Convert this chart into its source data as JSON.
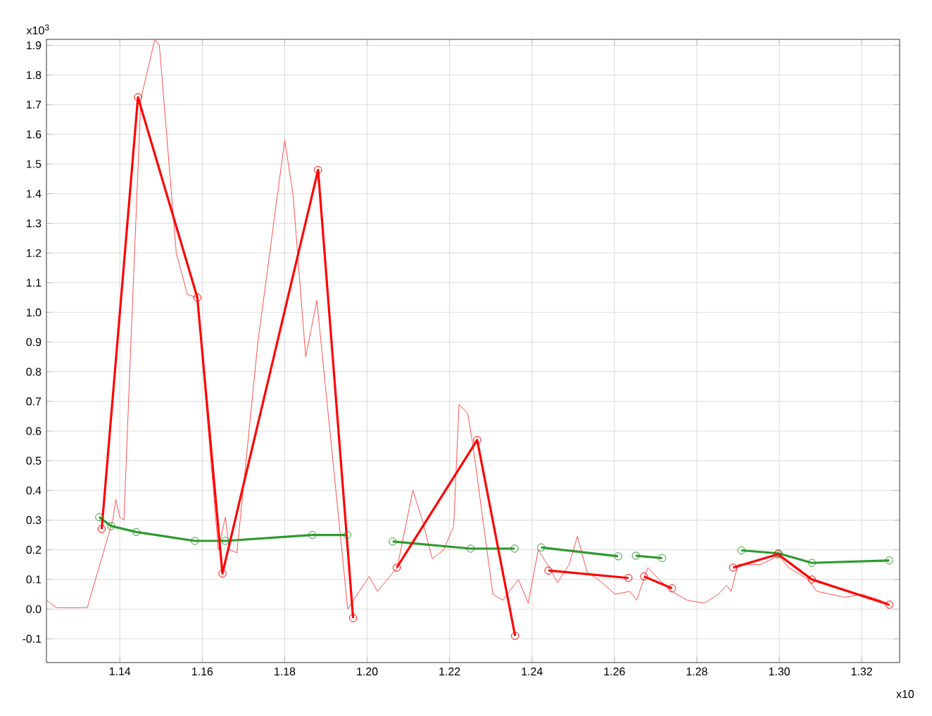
{
  "chart_data": {
    "type": "line",
    "ylabel": "x10$^{3}$",
    "xlabel": "x10",
    "xlim": [
      1.1222,
      1.3292
    ],
    "ylim": [
      -0.18,
      1.92
    ],
    "xticks": [
      1.14,
      1.16,
      1.18,
      {
        "value": 1.2,
        "label": "1.20"
      },
      1.22,
      1.24,
      1.26,
      1.28,
      {
        "value": 1.3,
        "label": "1.30"
      },
      1.32
    ],
    "yticks": [
      -0.1,
      {
        "value": 0,
        "label": "0.0"
      },
      0.1,
      0.2,
      0.3,
      0.4,
      0.5,
      0.6,
      0.7,
      0.8,
      0.9,
      {
        "value": 1,
        "label": "1.0"
      },
      1.1,
      1.2,
      1.3,
      1.4,
      1.5,
      1.6,
      1.7,
      1.8,
      1.9
    ],
    "grid": true,
    "series": [
      {
        "color": "#ff5050",
        "marker": "none",
        "x": [
          1.1222,
          1.1246,
          1.1321,
          1.1383,
          1.139,
          1.14,
          1.141,
          1.1424,
          1.1451,
          1.1485,
          1.1496,
          1.1537,
          1.1564,
          1.1588,
          1.1639,
          1.1656,
          1.1666,
          1.1684,
          1.1735,
          1.18,
          1.182,
          1.1851,
          1.1878,
          1.1953,
          1.1981,
          1.2005,
          1.2025,
          1.2049,
          1.2073,
          1.2111,
          1.2134,
          1.2158,
          1.2186,
          1.221,
          1.2223,
          1.2244,
          1.2257,
          1.2305,
          1.2329,
          1.2367,
          1.2391,
          1.2415,
          1.2442,
          1.2462,
          1.249,
          1.251,
          1.2534,
          1.2561,
          1.2602,
          1.2637,
          1.2654,
          1.2681,
          1.2708,
          1.2739,
          1.2777,
          1.2818,
          1.2852,
          1.2872,
          1.2883,
          1.29,
          1.2954,
          1.2999,
          1.3023,
          1.307,
          1.3091,
          1.3159,
          1.32,
          1.3245,
          1.3272
        ],
        "values": [
          0.03,
          0.005,
          0.005,
          0.3,
          0.37,
          0.31,
          0.3,
          0.8,
          1.72,
          1.92,
          1.9,
          1.2,
          1.06,
          1.05,
          0.2,
          0.31,
          0.2,
          0.19,
          0.9,
          1.58,
          1.4,
          0.85,
          1.04,
          0.0,
          0.06,
          0.11,
          0.06,
          0.1,
          0.14,
          0.4,
          0.3,
          0.17,
          0.2,
          0.28,
          0.69,
          0.66,
          0.55,
          0.05,
          0.03,
          0.1,
          0.02,
          0.2,
          0.14,
          0.09,
          0.15,
          0.245,
          0.124,
          0.1,
          0.05,
          0.06,
          0.03,
          0.14,
          0.1,
          0.06,
          0.03,
          0.02,
          0.05,
          0.08,
          0.06,
          0.15,
          0.15,
          0.18,
          0.14,
          0.1,
          0.06,
          0.04,
          0.05,
          0.03,
          0.01
        ]
      },
      {
        "color": "#2e9a2e",
        "marker": "circle",
        "x": [
          1.135,
          1.1379,
          1.144,
          1.1582,
          1.1656,
          1.1867,
          1.1952,
          1.2,
          1.2062,
          1.2251,
          1.2358,
          1.239,
          1.2422,
          1.2609,
          1.263,
          1.2652,
          1.2716,
          1.28,
          1.2908,
          1.2998,
          1.3079,
          1.3267
        ],
        "values": [
          0.31,
          0.28,
          0.26,
          0.23,
          0.23,
          0.25,
          0.25,
          null,
          0.228,
          0.204,
          0.204,
          null,
          0.208,
          0.178,
          null,
          0.18,
          0.172,
          null,
          0.198,
          0.188,
          0.156,
          0.164
        ]
      },
      {
        "color": "#ff0000",
        "marker": "circle",
        "x": [
          1.1356,
          1.1444,
          1.1588,
          1.1649,
          1.1881,
          1.1966,
          1.2,
          1.2072,
          1.2267,
          1.2359,
          1.24,
          1.244,
          1.2634,
          1.265,
          1.2672,
          1.274,
          1.28,
          1.2888,
          1.2997,
          1.3079,
          1.3267
        ],
        "values": [
          0.27,
          1.725,
          1.05,
          0.12,
          1.48,
          -0.03,
          null,
          0.14,
          0.57,
          -0.09,
          null,
          0.13,
          0.105,
          null,
          0.11,
          0.07,
          null,
          0.14,
          0.185,
          0.1,
          0.015
        ]
      }
    ]
  }
}
